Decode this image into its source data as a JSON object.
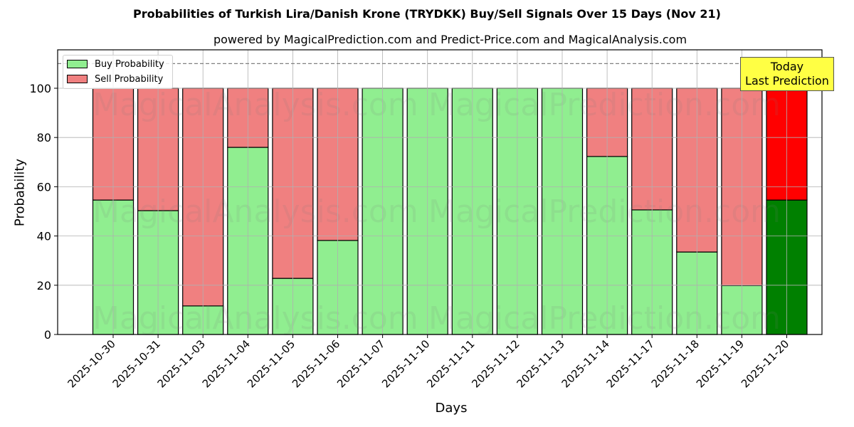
{
  "header": {
    "title": "Probabilities of Turkish Lira/Danish Krone (TRYDKK) Buy/Sell Signals Over 15 Days (Nov 21)",
    "subtitle": "powered by MagicalPrediction.com and Predict-Price.com and MagicalAnalysis.com"
  },
  "axes": {
    "xlabel": "Days",
    "ylabel": "Probability",
    "yticks": [
      "0",
      "20",
      "40",
      "60",
      "80",
      "100"
    ]
  },
  "legend": {
    "buy_label": "Buy Probability",
    "sell_label": "Sell Probability"
  },
  "annotation": {
    "line1": "Today",
    "line2": "Last Prediction"
  },
  "watermarks": [
    "MagicalAnalysis.com",
    "MagicalPrediction.com"
  ],
  "colors": {
    "buy": "#90ee90",
    "sell": "#f08080",
    "today_buy": "#008000",
    "today_sell": "#ff0000",
    "annotation_bg": "#ffff44",
    "grid": "#b0b0b0",
    "threshold_line": "#808080"
  },
  "chart_data": {
    "type": "bar",
    "stacked": true,
    "title": "Probabilities of Turkish Lira/Danish Krone (TRYDKK) Buy/Sell Signals Over 15 Days (Nov 21)",
    "subtitle": "powered by MagicalPrediction.com and Predict-Price.com and MagicalAnalysis.com",
    "xlabel": "Days",
    "ylabel": "Probability",
    "ylim": [
      0,
      115
    ],
    "yticks": [
      0,
      20,
      40,
      60,
      80,
      100
    ],
    "grid": true,
    "legend_position": "upper left",
    "threshold_line": 110,
    "categories": [
      "2025-10-30",
      "2025-10-31",
      "2025-11-03",
      "2025-11-04",
      "2025-11-05",
      "2025-11-06",
      "2025-11-07",
      "2025-11-10",
      "2025-11-11",
      "2025-11-12",
      "2025-11-13",
      "2025-11-14",
      "2025-11-17",
      "2025-11-18",
      "2025-11-19",
      "2025-11-20"
    ],
    "series": [
      {
        "name": "Buy Probability",
        "values": [
          54.6,
          50.3,
          11.6,
          76.0,
          22.8,
          38.2,
          100,
          100,
          100,
          100,
          100,
          72.3,
          50.6,
          33.5,
          19.9,
          54.6
        ]
      },
      {
        "name": "Sell Probability",
        "values": [
          45.4,
          49.7,
          88.4,
          24.0,
          77.2,
          61.8,
          0,
          0,
          0,
          0,
          0,
          27.7,
          49.4,
          66.5,
          80.1,
          45.4
        ]
      }
    ],
    "annotations": [
      {
        "text": "Today\nLast Prediction",
        "x": "2025-11-20"
      }
    ]
  }
}
